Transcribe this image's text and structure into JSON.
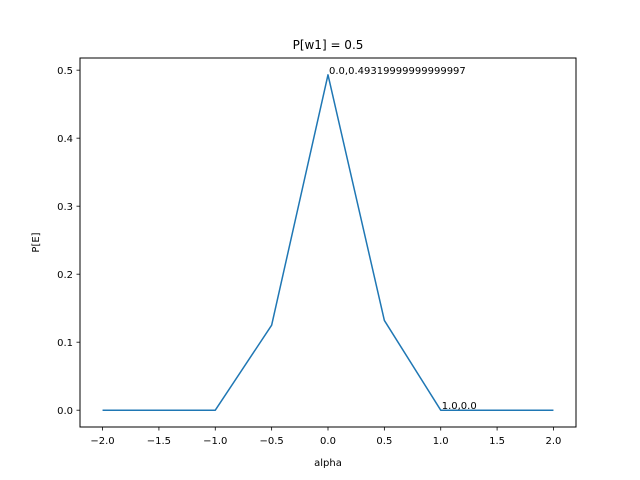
{
  "chart_data": {
    "type": "line",
    "title": "P[w1] = 0.5",
    "xlabel": "alpha",
    "ylabel": "P[E]",
    "xlim": [
      -2.2,
      2.2
    ],
    "ylim": [
      -0.0247,
      0.5179
    ],
    "xticks": [
      -2.0,
      -1.5,
      -1.0,
      -0.5,
      0.0,
      0.5,
      1.0,
      1.5,
      2.0
    ],
    "xtick_labels": [
      "−2.0",
      "−1.5",
      "−1.0",
      "−0.5",
      "0.0",
      "0.5",
      "1.0",
      "1.5",
      "2.0"
    ],
    "yticks": [
      0.0,
      0.1,
      0.2,
      0.3,
      0.4,
      0.5
    ],
    "ytick_labels": [
      "0.0",
      "0.1",
      "0.2",
      "0.3",
      "0.4",
      "0.5"
    ],
    "grid": false,
    "series": [
      {
        "color": "#1f77b4",
        "x": [
          -2.0,
          -1.5,
          -1.0,
          -0.5,
          0.0,
          0.5,
          1.0,
          1.5,
          2.0
        ],
        "y": [
          0.0,
          0.0,
          0.0,
          0.125,
          0.4932,
          0.132,
          0.0,
          0.0,
          0.0
        ]
      }
    ],
    "annotations": [
      {
        "text": "0.0,0.49319999999999997",
        "x": 0.0,
        "y": 0.4932
      },
      {
        "text": "1.0,0.0",
        "x": 1.0,
        "y": 0.0
      }
    ]
  }
}
